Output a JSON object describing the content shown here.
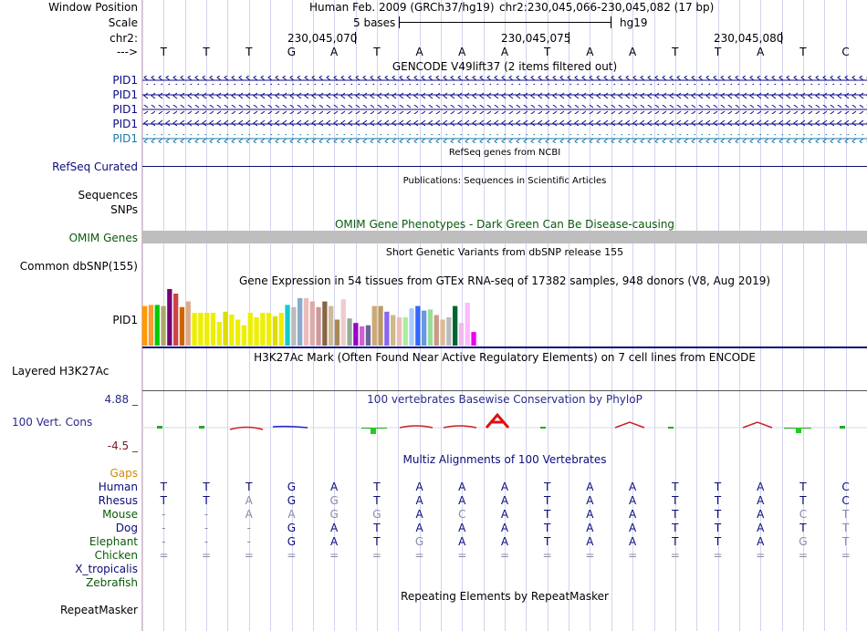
{
  "labels": {
    "window_position": "Window Position",
    "scale": "Scale",
    "chrom": "chr2:",
    "strand_arrow": "--->",
    "pid1_rows": [
      "PID1",
      "PID1",
      "PID1",
      "PID1",
      "PID1"
    ],
    "refseq": "RefSeq Curated",
    "sequences": "Sequences",
    "snps": "SNPs",
    "omim": "OMIM Genes",
    "common_dbsnp": "Common dbSNP(155)",
    "gtex_gene": "PID1",
    "layered": "Layered H3K27Ac",
    "cons_max": "4.88 _",
    "cons_name": "100 Vert. Cons",
    "cons_min": "-4.5 _",
    "gaps": "Gaps",
    "species": [
      "Human",
      "Rhesus",
      "Mouse",
      "Dog",
      "Elephant",
      "Chicken",
      "X_tropicalis",
      "Zebrafish"
    ],
    "repeatmasker": "RepeatMasker"
  },
  "header": {
    "assembly": "Human Feb. 2009 (GRCh37/hg19)",
    "position": "chr2:230,045,066-230,045,082 (17 bp)",
    "scale_text": "5 bases",
    "scale_db": "hg19",
    "coords": [
      "230,045,070",
      "230,045,075",
      "230,045,080"
    ]
  },
  "sequence": [
    "T",
    "T",
    "T",
    "G",
    "A",
    "T",
    "A",
    "A",
    "A",
    "T",
    "A",
    "A",
    "T",
    "T",
    "A",
    "T",
    "C"
  ],
  "tracks": {
    "gencode_title": "GENCODE V49lift37 (2 items filtered out)",
    "refseq_title": "RefSeq genes from NCBI",
    "publications_title": "Publications: Sequences in Scientific Articles",
    "omim_title": "OMIM Gene Phenotypes - Dark Green Can Be Disease-causing",
    "dbsnp_title": "Short Genetic Variants from dbSNP release 155",
    "gtex_title": "Gene Expression in 54 tissues from GTEx RNA-seq of 17382 samples, 948 donors (V8, Aug 2019)",
    "h3k27_title": "H3K27Ac Mark (Often Found Near Active Regulatory Elements) on 7 cell lines from ENCODE",
    "cons_title": "100 vertebrates Basewise Conservation by PhyloP",
    "multiz_title": "Multiz Alignments of 100 Vertebrates",
    "repeat_title": "Repeating Elements by RepeatMasker"
  },
  "alignments": [
    {
      "species": "Human",
      "bases": [
        "T",
        "T",
        "T",
        "G",
        "A",
        "T",
        "A",
        "A",
        "A",
        "T",
        "A",
        "A",
        "T",
        "T",
        "A",
        "T",
        "C"
      ],
      "dim": []
    },
    {
      "species": "Rhesus",
      "bases": [
        "T",
        "T",
        "A",
        "G",
        "G",
        "T",
        "A",
        "A",
        "A",
        "T",
        "A",
        "A",
        "T",
        "T",
        "A",
        "T",
        "C"
      ],
      "dim": [
        2,
        4
      ]
    },
    {
      "species": "Mouse",
      "bases": [
        "-",
        "-",
        "A",
        "A",
        "G",
        "G",
        "A",
        "C",
        "A",
        "T",
        "A",
        "A",
        "T",
        "T",
        "A",
        "C",
        "T"
      ],
      "dim": [
        0,
        1,
        2,
        3,
        4,
        5,
        7,
        15,
        16
      ]
    },
    {
      "species": "Dog",
      "bases": [
        "-",
        "-",
        "-",
        "G",
        "A",
        "T",
        "A",
        "A",
        "A",
        "T",
        "A",
        "A",
        "T",
        "T",
        "A",
        "T",
        "T"
      ],
      "dim": [
        0,
        1,
        2,
        16
      ]
    },
    {
      "species": "Elephant",
      "bases": [
        "-",
        "-",
        "-",
        "G",
        "A",
        "T",
        "G",
        "A",
        "A",
        "T",
        "A",
        "A",
        "T",
        "T",
        "A",
        "G",
        "T"
      ],
      "dim": [
        0,
        1,
        2,
        6,
        15,
        16
      ]
    },
    {
      "species": "Chicken",
      "bases": [
        "=",
        "=",
        "=",
        "=",
        "=",
        "=",
        "=",
        "=",
        "=",
        "=",
        "=",
        "=",
        "=",
        "=",
        "=",
        "=",
        "="
      ],
      "dim": "all"
    }
  ],
  "gtex_values": [
    0.7,
    0.72,
    0.72,
    0.7,
    1.0,
    0.92,
    0.68,
    0.78,
    0.58,
    0.58,
    0.58,
    0.58,
    0.42,
    0.6,
    0.55,
    0.46,
    0.36,
    0.58,
    0.5,
    0.58,
    0.58,
    0.52,
    0.58,
    0.72,
    0.68,
    0.84,
    0.84,
    0.78,
    0.68,
    0.78,
    0.7,
    0.46,
    0.82,
    0.48,
    0.4,
    0.34,
    0.36,
    0.7,
    0.7,
    0.6,
    0.54,
    0.5,
    0.5,
    0.66,
    0.7,
    0.62,
    0.64,
    0.54,
    0.46,
    0.5,
    0.7,
    0.4,
    0.76,
    0.24
  ],
  "gtex_colors": [
    "#FF9900",
    "#FF9933",
    "#00CC00",
    "#AAAA66",
    "#770077",
    "#CC4444",
    "#CC6600",
    "#DDAA88",
    "#EEEE00",
    "#EEEE00",
    "#EEEE00",
    "#EEEE00",
    "#EEEE00",
    "#DDDD00",
    "#EEEE00",
    "#EEEE00",
    "#EEEE00",
    "#EEEE00",
    "#EEEE00",
    "#EEEE00",
    "#EEEE00",
    "#DDDD00",
    "#EEEE00",
    "#11CCCC",
    "#BBBBBB",
    "#88AACC",
    "#EEBBBB",
    "#DDAAAA",
    "#CC9999",
    "#886644",
    "#CCBB99",
    "#AA8855",
    "#EECCCC",
    "#99AA99",
    "#9900CC",
    "#CC66CC",
    "#666699",
    "#CCAA77",
    "#BB9966",
    "#8866EE",
    "#CCBB88",
    "#EEBBBB",
    "#AAEE99",
    "#AACCFF",
    "#3366FF",
    "#6699DD",
    "#99DD99",
    "#CC9988",
    "#DDBB99",
    "#BBBBBB",
    "#006633",
    "#EEBBEE",
    "#FFBBFF",
    "#EE00EE"
  ]
}
